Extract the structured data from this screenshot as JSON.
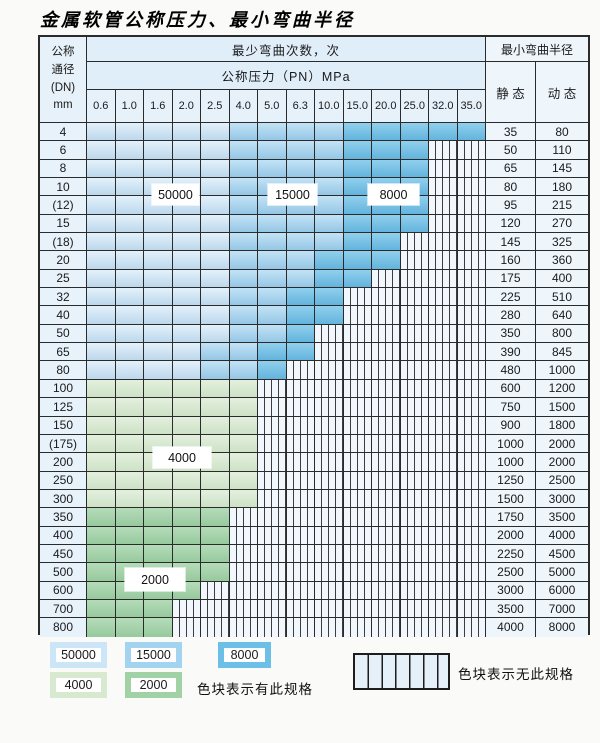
{
  "title": "金属软管公称压力、最小弯曲半径",
  "colors": {
    "blue_50000": "#cde6f7",
    "blue_15000": "#a2d4f0",
    "blue_8000": "#6cc0e7",
    "green_4000": "#d7e9cf",
    "green_2000": "#a0d2a6",
    "grid_line": "#2b2b2b"
  },
  "cycle_labels": {
    "c50000": "50000",
    "c15000": "15000",
    "c8000": "8000",
    "c4000": "4000",
    "c2000": "2000"
  },
  "table": {
    "dn_header_lines": [
      "公称",
      "通径",
      "(DN)",
      "mm"
    ],
    "cycles_header": "最少弯曲次数，次",
    "pressure_header": "公称压力（PN）MPa",
    "pressure_columns": [
      "0.6",
      "1.0",
      "1.6",
      "2.0",
      "2.5",
      "4.0",
      "5.0",
      "6.3",
      "10.0",
      "15.0",
      "20.0",
      "25.0",
      "32.0",
      "35.0"
    ],
    "radius_header": "最小弯曲半径",
    "static_header": "静 态",
    "dynamic_header": "动 态",
    "rows": [
      {
        "dn": "4",
        "static": "35",
        "dynamic": "80",
        "spec": "blue",
        "light_end": 5,
        "med_end": 9,
        "dark_end": 14
      },
      {
        "dn": "6",
        "static": "50",
        "dynamic": "110",
        "spec": "blue",
        "light_end": 5,
        "med_end": 9,
        "dark_end": 12
      },
      {
        "dn": "8",
        "static": "65",
        "dynamic": "145",
        "spec": "blue",
        "light_end": 5,
        "med_end": 9,
        "dark_end": 12
      },
      {
        "dn": "10",
        "static": "80",
        "dynamic": "180",
        "spec": "blue",
        "light_end": 5,
        "med_end": 9,
        "dark_end": 12
      },
      {
        "dn": "(12)",
        "static": "95",
        "dynamic": "215",
        "spec": "blue",
        "light_end": 5,
        "med_end": 9,
        "dark_end": 12
      },
      {
        "dn": "15",
        "static": "120",
        "dynamic": "270",
        "spec": "blue",
        "light_end": 5,
        "med_end": 9,
        "dark_end": 12
      },
      {
        "dn": "(18)",
        "static": "145",
        "dynamic": "325",
        "spec": "blue",
        "light_end": 5,
        "med_end": 9,
        "dark_end": 11
      },
      {
        "dn": "20",
        "static": "160",
        "dynamic": "360",
        "spec": "blue",
        "light_end": 5,
        "med_end": 8,
        "dark_end": 11
      },
      {
        "dn": "25",
        "static": "175",
        "dynamic": "400",
        "spec": "blue",
        "light_end": 5,
        "med_end": 8,
        "dark_end": 10
      },
      {
        "dn": "32",
        "static": "225",
        "dynamic": "510",
        "spec": "blue",
        "light_end": 5,
        "med_end": 7,
        "dark_end": 9
      },
      {
        "dn": "40",
        "static": "280",
        "dynamic": "640",
        "spec": "blue",
        "light_end": 5,
        "med_end": 7,
        "dark_end": 9
      },
      {
        "dn": "50",
        "static": "350",
        "dynamic": "800",
        "spec": "blue",
        "light_end": 5,
        "med_end": 7,
        "dark_end": 8
      },
      {
        "dn": "65",
        "static": "390",
        "dynamic": "845",
        "spec": "blue",
        "light_end": 4,
        "med_end": 6,
        "dark_end": 8
      },
      {
        "dn": "80",
        "static": "480",
        "dynamic": "1000",
        "spec": "blue",
        "light_end": 4,
        "med_end": 6,
        "dark_end": 7
      },
      {
        "dn": "100",
        "static": "600",
        "dynamic": "1200",
        "spec": "green",
        "shade": "4000",
        "end": 6
      },
      {
        "dn": "125",
        "static": "750",
        "dynamic": "1500",
        "spec": "green",
        "shade": "4000",
        "end": 6
      },
      {
        "dn": "150",
        "static": "900",
        "dynamic": "1800",
        "spec": "green",
        "shade": "4000",
        "end": 6
      },
      {
        "dn": "(175)",
        "static": "1000",
        "dynamic": "2000",
        "spec": "green",
        "shade": "4000",
        "end": 6
      },
      {
        "dn": "200",
        "static": "1000",
        "dynamic": "2000",
        "spec": "green",
        "shade": "4000",
        "end": 6
      },
      {
        "dn": "250",
        "static": "1250",
        "dynamic": "2500",
        "spec": "green",
        "shade": "4000",
        "end": 6
      },
      {
        "dn": "300",
        "static": "1500",
        "dynamic": "3000",
        "spec": "green",
        "shade": "4000",
        "end": 6
      },
      {
        "dn": "350",
        "static": "1750",
        "dynamic": "3500",
        "spec": "green",
        "shade": "2000",
        "end": 5
      },
      {
        "dn": "400",
        "static": "2000",
        "dynamic": "4000",
        "spec": "green",
        "shade": "2000",
        "end": 5
      },
      {
        "dn": "450",
        "static": "2250",
        "dynamic": "4500",
        "spec": "green",
        "shade": "2000",
        "end": 5
      },
      {
        "dn": "500",
        "static": "2500",
        "dynamic": "5000",
        "spec": "green",
        "shade": "2000",
        "end": 5
      },
      {
        "dn": "600",
        "static": "3000",
        "dynamic": "6000",
        "spec": "green",
        "shade": "2000",
        "end": 4
      },
      {
        "dn": "700",
        "static": "3500",
        "dynamic": "7000",
        "spec": "green",
        "shade": "2000",
        "end": 3
      },
      {
        "dn": "800",
        "static": "4000",
        "dynamic": "8000",
        "spec": "green",
        "shade": "2000",
        "end": 3
      }
    ]
  },
  "legend": {
    "has_spec_text": "色块表示有此规格",
    "no_spec_text": "色块表示无此规格"
  }
}
